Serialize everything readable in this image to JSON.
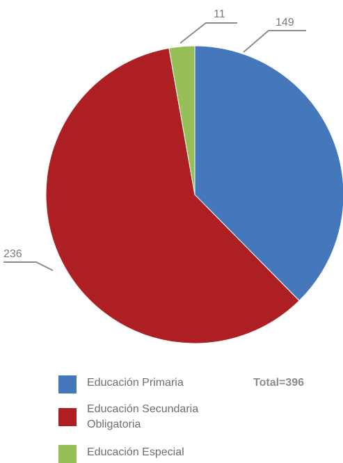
{
  "chart_data": {
    "type": "pie",
    "categories": [
      "Educación Primaria",
      "Educación Secundaria Obligatoria",
      "Educación Especial"
    ],
    "values": [
      149,
      236,
      11
    ],
    "colors": [
      "#4577bb",
      "#ae1f24",
      "#96bf57"
    ],
    "data_labels": [
      "149",
      "236",
      "11"
    ],
    "legend_position": "bottom",
    "start_angle": "top",
    "direction": "clockwise"
  },
  "total_label": "Total=396",
  "leader_color": "#8c8c8c"
}
